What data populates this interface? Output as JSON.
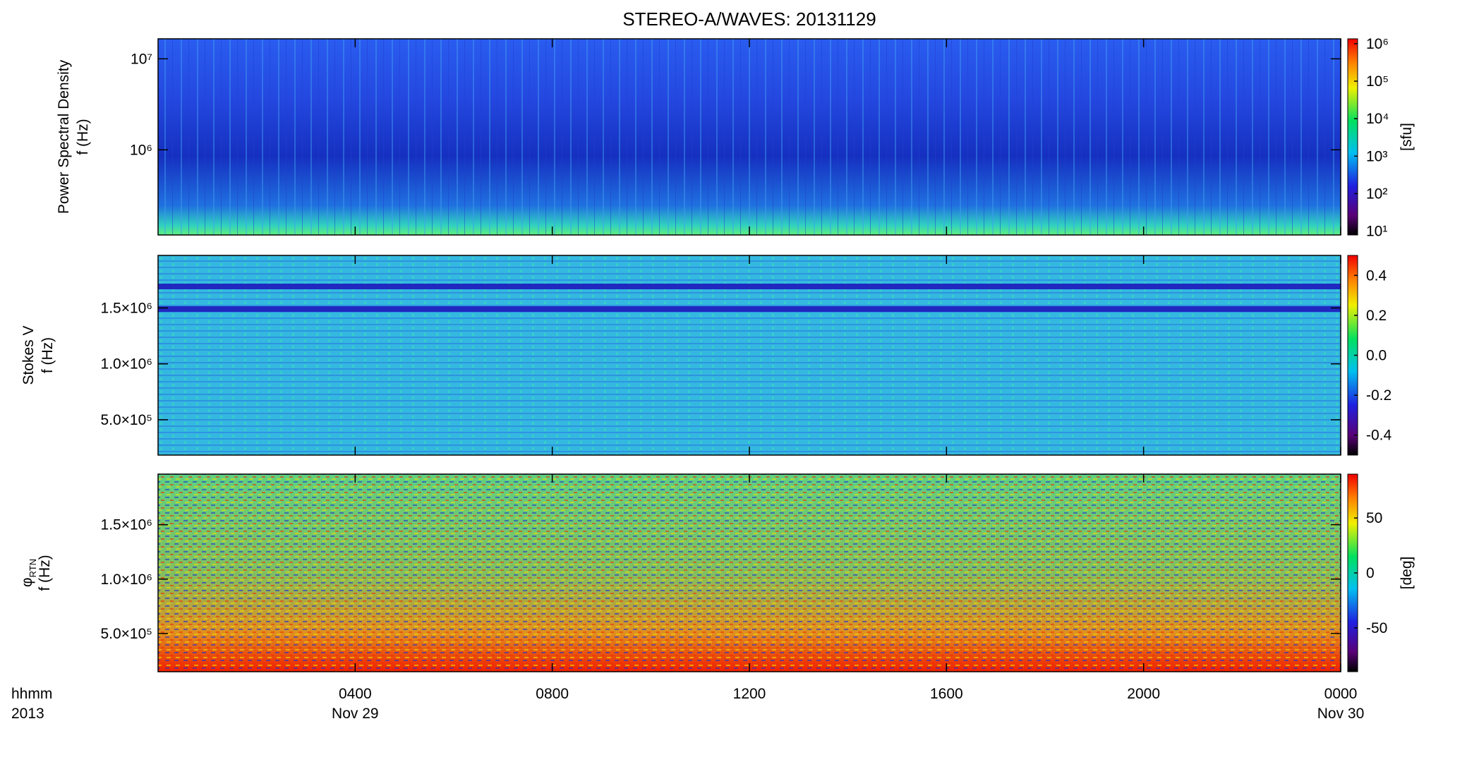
{
  "chart_data": [
    {
      "type": "heatmap",
      "title": "STEREO-A/WAVES: 20131129",
      "ylabel": [
        "Power Spectral Density",
        "f (Hz)"
      ],
      "ylog": true,
      "ylim": [
        116000,
        16600000
      ],
      "yticks": [
        {
          "value": 1000000,
          "label": "10⁶"
        },
        {
          "value": 10000000,
          "label": "10⁷"
        }
      ],
      "colorbar": {
        "label": "[sfu]",
        "log": true,
        "clim": [
          7.9,
          1350000
        ],
        "ticks": [
          {
            "value": 10,
            "label": "10¹"
          },
          {
            "value": 100,
            "label": "10²"
          },
          {
            "value": 1000,
            "label": "10³"
          },
          {
            "value": 10000,
            "label": "10⁴"
          },
          {
            "value": 100000,
            "label": "10⁵"
          },
          {
            "value": 1000000,
            "label": "10⁶"
          }
        ]
      }
    },
    {
      "type": "heatmap",
      "ylabel": [
        "Stokes V",
        "f (Hz)"
      ],
      "ylog": false,
      "ylim": [
        184000,
        1970000
      ],
      "yticks": [
        {
          "value": 500000,
          "label": "5.0×10⁵"
        },
        {
          "value": 1000000,
          "label": "1.0×10⁶"
        },
        {
          "value": 1500000,
          "label": "1.5×10⁶"
        }
      ],
      "colorbar": {
        "log": false,
        "clim": [
          -0.5,
          0.5
        ],
        "ticks": [
          -0.4,
          -0.2,
          {
            "value": 0,
            "label": "0.0"
          },
          0.2,
          0.4
        ]
      }
    },
    {
      "type": "heatmap",
      "ylabel": [
        "φ",
        "f (Hz)"
      ],
      "ylabel_subscript": "RTN",
      "ylog": false,
      "ylim": [
        149000,
        1965000
      ],
      "yticks": [
        {
          "value": 500000,
          "label": "5.0×10⁵"
        },
        {
          "value": 1000000,
          "label": "1.0×10⁶"
        },
        {
          "value": 1500000,
          "label": "1.5×10⁶"
        }
      ],
      "colorbar": {
        "label": "[deg]",
        "log": false,
        "clim": [
          -90,
          90
        ],
        "ticks": [
          -50,
          0,
          50
        ]
      },
      "xlim": [
        0,
        24
      ],
      "xticks": [
        {
          "value": 4,
          "label": "0400"
        },
        {
          "value": 8,
          "label": "0800"
        },
        {
          "value": 12,
          "label": "1200"
        },
        {
          "value": 16,
          "label": "1600"
        },
        {
          "value": 20,
          "label": "2000"
        },
        {
          "value": 24,
          "label": "0000"
        }
      ],
      "xdates": [
        {
          "value": 4,
          "label": "Nov 29"
        },
        {
          "value": 24,
          "label": "Nov 30"
        }
      ],
      "xlabel": [
        "hhmm",
        "2013"
      ]
    }
  ]
}
